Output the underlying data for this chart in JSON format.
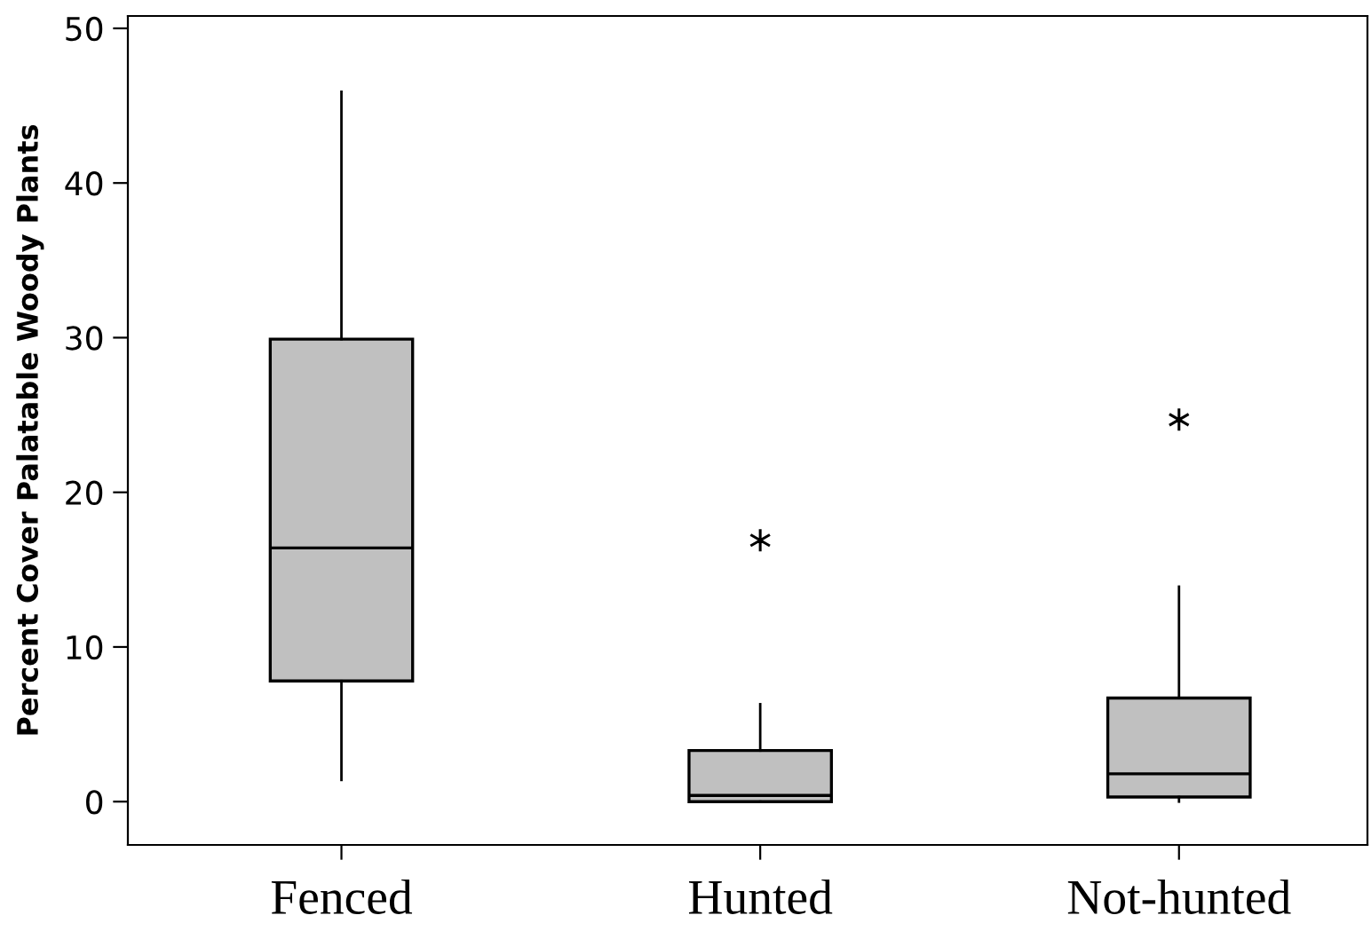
{
  "chart_data": {
    "type": "box",
    "ylabel": "Percent Cover Palatable Woody Plants",
    "categories": [
      "Fenced",
      "Hunted",
      "Not-hunted"
    ],
    "color": "#c0c0c0",
    "boxes": [
      {
        "low": 1.4,
        "q1": 7.8,
        "median": 16.4,
        "q3": 29.9,
        "high": 45.9
      },
      {
        "low": 0,
        "q1": 0,
        "median": 0.4,
        "q3": 3.3,
        "high": 6.3,
        "outliers": [
          16.9
        ]
      },
      {
        "low": 0,
        "q1": 0.3,
        "median": 1.8,
        "q3": 6.7,
        "high": 13.9,
        "outliers": [
          24.7
        ]
      }
    ],
    "ylim": [
      -2.8,
      50.8
    ],
    "yticks": [
      0,
      10,
      20,
      30,
      40,
      50
    ],
    "grid": false
  }
}
